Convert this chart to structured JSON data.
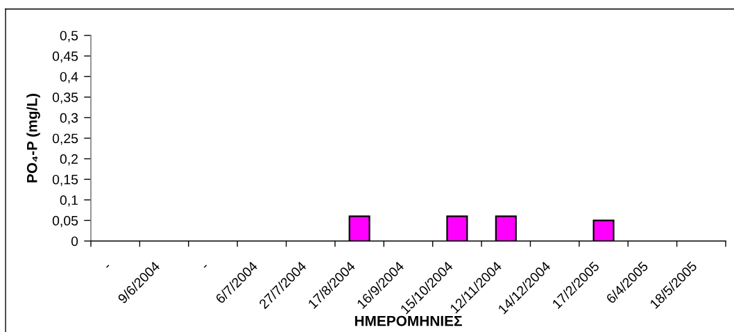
{
  "chart_data": {
    "type": "bar",
    "xlabel": "ΗΜΕΡΟΜΗΝΙΕΣ",
    "ylabel": "PO₄-P (mg/L)",
    "categories": [
      "-",
      "9/6/2004",
      "-",
      "6/7/2004",
      "27/7/2004",
      "17/8/2004",
      "16/9/2004",
      "15/10/2004",
      "12/11/2004",
      "14/12/2004",
      "17/2/2005",
      "6/4/2005",
      "18/5/2005"
    ],
    "values": [
      null,
      null,
      null,
      null,
      null,
      0.06,
      null,
      0.06,
      0.06,
      null,
      0.05,
      null,
      null
    ],
    "color": "#ff00ff",
    "ylim": [
      0,
      0.5
    ],
    "yticks": [
      0,
      {
        "value": 0.05,
        "label": "0,05"
      },
      {
        "value": 0.1,
        "label": "0,1"
      },
      {
        "value": 0.15,
        "label": "0,15"
      },
      {
        "value": 0.2,
        "label": "0,2"
      },
      {
        "value": 0.25,
        "label": "0,25"
      },
      {
        "value": 0.3,
        "label": "0,3"
      },
      {
        "value": 0.35,
        "label": "0,35"
      },
      {
        "value": 0.4,
        "label": "0,4"
      },
      {
        "value": 0.45,
        "label": "0,45"
      },
      {
        "value": 0.5,
        "label": "0,5"
      }
    ]
  }
}
